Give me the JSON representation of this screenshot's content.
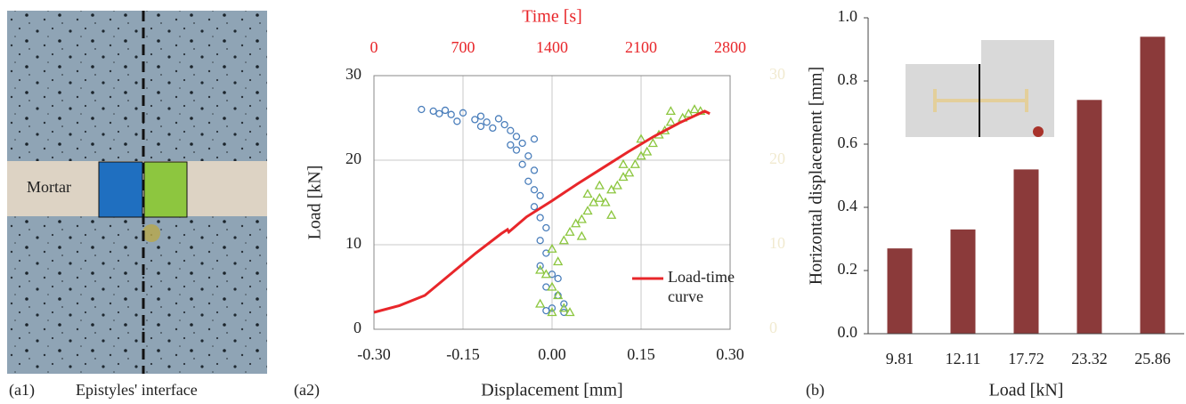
{
  "photo": {
    "panel_label": "(a1)",
    "caption": "Epistyles' interface",
    "band_label": "Mortar"
  },
  "chart_data": [
    {
      "type": "scatter",
      "panel_label": "(a2)",
      "x_label": "Displacement [mm]",
      "y_label": "Load [kN]",
      "x2_label": "Time [s]",
      "xlim": [
        -0.3,
        0.3
      ],
      "xticks": [
        {
          "value": -0.3,
          "label": "-0.30"
        },
        {
          "value": -0.15,
          "label": "-0.15"
        },
        {
          "value": 0,
          "label": "0.00"
        },
        {
          "value": 0.15,
          "label": "0.15"
        },
        {
          "value": 0.3,
          "label": "0.30"
        }
      ],
      "x2lim": [
        0,
        2800
      ],
      "x2ticks": [
        0,
        700,
        1400,
        2100,
        2800
      ],
      "x2_color": "#e8262a",
      "ylim": [
        0,
        30
      ],
      "yticks": [
        0,
        10,
        20,
        30
      ],
      "y2lim": [
        0,
        30
      ],
      "y2ticks": [
        0,
        10,
        20,
        30
      ],
      "y2_color": "#f1ead0",
      "grid": true,
      "legend": "lower right",
      "series": [
        {
          "type": "scatter",
          "marker": "circle",
          "color": "#4a7ebb",
          "x": [
            -0.22,
            -0.2,
            -0.19,
            -0.18,
            -0.17,
            -0.15,
            -0.13,
            -0.12,
            -0.11,
            -0.09,
            -0.1,
            -0.08,
            -0.07,
            -0.06,
            -0.05,
            -0.06,
            -0.04,
            -0.05,
            -0.03,
            -0.04,
            -0.03,
            -0.02,
            -0.03,
            -0.02,
            -0.01,
            -0.02,
            -0.01,
            -0.02,
            0,
            -0.01,
            0.01,
            0.02,
            0,
            0.02,
            -0.01,
            0.01,
            -0.03,
            -0.07,
            -0.12,
            -0.16
          ],
          "values": [
            26,
            25.8,
            25.5,
            25.9,
            25.4,
            25.6,
            24.8,
            25.2,
            24.5,
            24.9,
            23.8,
            24.2,
            23.5,
            22.8,
            22,
            21.2,
            20.5,
            19.5,
            18.8,
            17.5,
            16.5,
            15.8,
            14.5,
            13.2,
            12,
            10.5,
            9,
            7.5,
            6.5,
            5,
            4,
            3,
            2.5,
            2,
            2.2,
            6,
            22.5,
            21.8,
            24,
            24.6
          ]
        },
        {
          "type": "scatter",
          "marker": "triangle",
          "color": "#8cc63f",
          "x": [
            0,
            0.02,
            0.03,
            -0.02,
            0.01,
            0,
            -0.01,
            0.01,
            0,
            0.02,
            0.03,
            0.04,
            0.05,
            0.06,
            0.07,
            0.08,
            0.1,
            0.11,
            0.12,
            0.13,
            0.14,
            0.15,
            0.16,
            0.17,
            0.18,
            0.19,
            0.2,
            0.22,
            0.23,
            0.24,
            0.25,
            0.12,
            0.09,
            0.05,
            0.08,
            0.15,
            0.2,
            0.1,
            0.06,
            -0.02
          ],
          "values": [
            2,
            2.5,
            2,
            3,
            4,
            5,
            6.5,
            8,
            9.5,
            10.5,
            11.5,
            12.5,
            13,
            14,
            15,
            15.5,
            16.5,
            17,
            18,
            18.5,
            19.5,
            20.5,
            21,
            22,
            23,
            23.5,
            24.5,
            25,
            25.5,
            26,
            25.8,
            19.5,
            15,
            11,
            17,
            22.5,
            25.8,
            13.5,
            16,
            7
          ]
        },
        {
          "type": "line",
          "axis": "x2",
          "name": "Load-time curve",
          "color": "#e8262a",
          "x": [
            0,
            200,
            400,
            600,
            800,
            1000,
            1050,
            1060,
            1200,
            1400,
            1600,
            1800,
            2000,
            2200,
            2400,
            2600,
            2640
          ],
          "values": [
            2,
            2.8,
            4,
            6.5,
            9,
            11.3,
            11.8,
            11.5,
            13.3,
            15.2,
            17.2,
            19.1,
            21,
            22.8,
            24.4,
            25.8,
            25.5
          ]
        }
      ]
    },
    {
      "type": "bar",
      "panel_label": "(b)",
      "x_label": "Load [kN]",
      "y_label": "Horizontal displacement [mm]",
      "categories": [
        "9.81",
        "12.11",
        "17.72",
        "23.32",
        "25.86"
      ],
      "values": [
        0.27,
        0.33,
        0.52,
        0.74,
        0.94
      ],
      "color": "#8b3a3a",
      "ylim": [
        0,
        1
      ],
      "yticks": [
        {
          "value": 0,
          "label": "0.0"
        },
        {
          "value": 0.2,
          "label": "0.2"
        },
        {
          "value": 0.4,
          "label": "0.4"
        },
        {
          "value": 0.6,
          "label": "0.6"
        },
        {
          "value": 0.8,
          "label": "0.8"
        },
        {
          "value": 1,
          "label": "1.0"
        }
      ],
      "grid": false
    }
  ]
}
